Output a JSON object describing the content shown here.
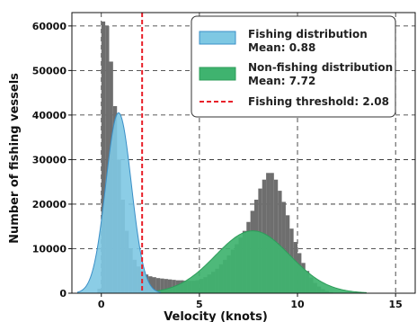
{
  "chart_data": {
    "type": "histogram",
    "xlabel": "Velocity (knots)",
    "ylabel": "Number of fishing vessels",
    "xlim": [
      -1.5,
      16
    ],
    "ylim": [
      0,
      63000
    ],
    "x_ticks": [
      0,
      5,
      10,
      15
    ],
    "y_ticks": [
      0,
      10000,
      20000,
      30000,
      40000,
      50000,
      60000
    ],
    "x_tick_labels": [
      "0",
      "5",
      "10",
      "15"
    ],
    "y_tick_labels": [
      "0",
      "10000",
      "20000",
      "30000",
      "40000",
      "50000",
      "60000"
    ],
    "grid": true,
    "legend_position": "top-right",
    "colors": {
      "histogram": "#6e6e6e",
      "fishing_fill": "#7ec8e3",
      "fishing_edge": "#3a8fc7",
      "nonfishing_fill": "#3fb36f",
      "nonfishing_edge": "#2e9d5a",
      "threshold": "#e8202a"
    },
    "legend": {
      "fishing": {
        "label": "Fishing distribution",
        "mean": "Mean: 0.88"
      },
      "nonfishing": {
        "label": "Non-fishing distribution",
        "mean": "Mean: 7.72"
      },
      "threshold": {
        "label": "Fishing threshold: 2.08"
      }
    },
    "histogram": {
      "bin_width": 0.2,
      "bins": [
        [
          -0.2,
          1000
        ],
        [
          0.0,
          61000
        ],
        [
          0.2,
          60000
        ],
        [
          0.4,
          52000
        ],
        [
          0.6,
          42000
        ],
        [
          0.8,
          30000
        ],
        [
          1.0,
          21000
        ],
        [
          1.2,
          14000
        ],
        [
          1.4,
          10000
        ],
        [
          1.6,
          7500
        ],
        [
          1.8,
          6000
        ],
        [
          2.0,
          5000
        ],
        [
          2.2,
          4200
        ],
        [
          2.4,
          3800
        ],
        [
          2.6,
          3600
        ],
        [
          2.8,
          3400
        ],
        [
          3.0,
          3300
        ],
        [
          3.2,
          3200
        ],
        [
          3.4,
          3100
        ],
        [
          3.6,
          3000
        ],
        [
          3.8,
          2900
        ],
        [
          4.0,
          2900
        ],
        [
          4.2,
          2800
        ],
        [
          4.4,
          2800
        ],
        [
          4.6,
          2800
        ],
        [
          4.8,
          2900
        ],
        [
          5.0,
          3200
        ],
        [
          5.2,
          3600
        ],
        [
          5.4,
          4200
        ],
        [
          5.6,
          4800
        ],
        [
          5.8,
          5500
        ],
        [
          6.0,
          6500
        ],
        [
          6.2,
          7500
        ],
        [
          6.4,
          8500
        ],
        [
          6.6,
          9800
        ],
        [
          6.8,
          11000
        ],
        [
          7.0,
          12500
        ],
        [
          7.2,
          14000
        ],
        [
          7.4,
          16000
        ],
        [
          7.6,
          18500
        ],
        [
          7.8,
          21000
        ],
        [
          8.0,
          23500
        ],
        [
          8.2,
          25500
        ],
        [
          8.4,
          27000
        ],
        [
          8.6,
          27000
        ],
        [
          8.8,
          25500
        ],
        [
          9.0,
          23000
        ],
        [
          9.2,
          20500
        ],
        [
          9.4,
          17500
        ],
        [
          9.6,
          14500
        ],
        [
          9.8,
          11500
        ],
        [
          10.0,
          9000
        ],
        [
          10.2,
          6800
        ],
        [
          10.4,
          5000
        ],
        [
          10.6,
          3500
        ],
        [
          10.8,
          2300
        ],
        [
          11.0,
          1500
        ],
        [
          11.2,
          900
        ],
        [
          11.4,
          500
        ],
        [
          11.6,
          250
        ]
      ]
    },
    "fishing_curve": {
      "mean": 0.88,
      "sd": 0.65,
      "peak": 40500
    },
    "nonfishing_curve": {
      "mean": 7.72,
      "sd": 1.9,
      "peak": 14000
    },
    "threshold_x": 2.08
  }
}
